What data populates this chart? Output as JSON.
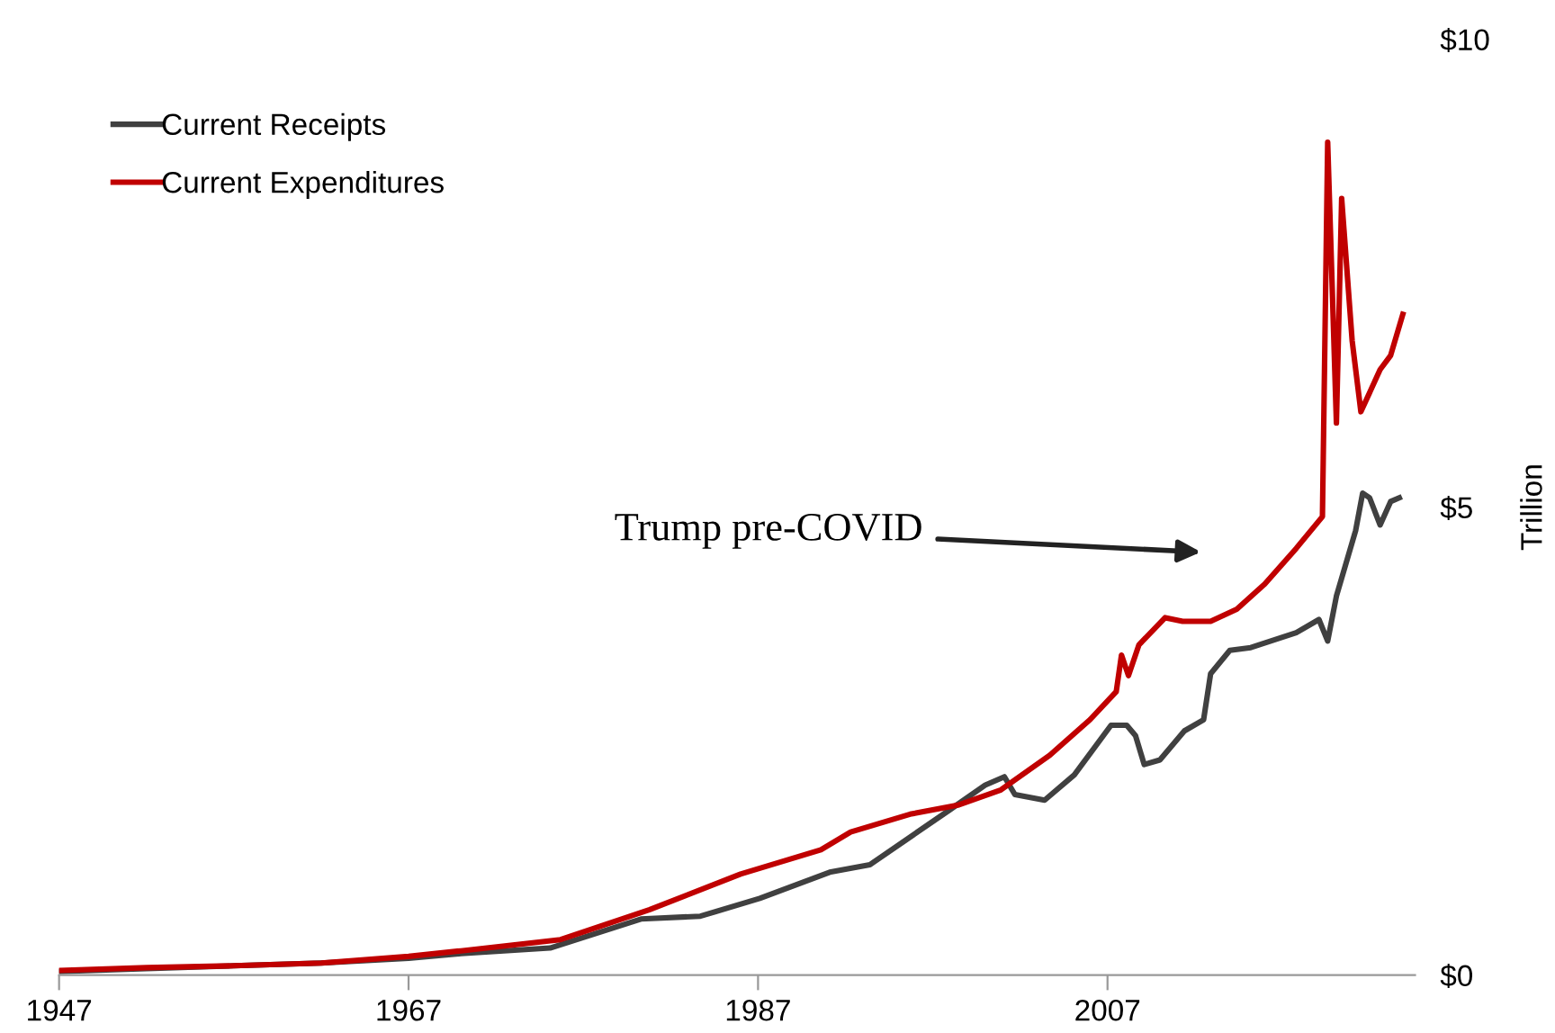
{
  "chart_data": {
    "type": "line",
    "xlim": [
      1947,
      2024.6
    ],
    "xticks": [
      1947,
      1967,
      1987,
      2007
    ],
    "ylim": [
      0,
      10
    ],
    "yticks": [
      {
        "value": 0,
        "label": "$0"
      },
      {
        "value": 5,
        "label": "$5"
      },
      {
        "value": 10,
        "label": "$10"
      }
    ],
    "ylabel": "Trillion",
    "legend": "top left",
    "grid": false,
    "series": [
      {
        "name": "Current Receipts",
        "color": "#404040",
        "x": [
          1947,
          1952,
          1957,
          1962,
          1967,
          1970,
          1975.1,
          1980.3,
          1983.7,
          1987.1,
          1991.1,
          1993.4,
          1998.0,
          2000.0,
          2001.1,
          2001.7,
          2003.4,
          2005.1,
          2007.2,
          2008.1,
          2008.6,
          2009.1,
          2010.0,
          2011.4,
          2012.5,
          2012.9,
          2014.0,
          2015.2,
          2017.8,
          2019.1,
          2019.6,
          2020.1,
          2021.2,
          2021.6,
          2022.0,
          2022.6,
          2023.2,
          2023.7
        ],
        "values": [
          0.04,
          0.07,
          0.1,
          0.13,
          0.18,
          0.23,
          0.29,
          0.6,
          0.63,
          0.82,
          1.1,
          1.18,
          1.77,
          2.03,
          2.12,
          1.93,
          1.87,
          2.14,
          2.67,
          2.67,
          2.56,
          2.25,
          2.3,
          2.61,
          2.73,
          3.22,
          3.47,
          3.5,
          3.66,
          3.8,
          3.57,
          4.05,
          4.75,
          5.15,
          5.1,
          4.81,
          5.06,
          5.1
        ]
      },
      {
        "name": "Current Expenditures",
        "color": "#c00000",
        "x": [
          1947,
          1952,
          1957,
          1962,
          1967,
          1970,
          1975.7,
          1980.8,
          1986.0,
          1990.6,
          1992.3,
          1995.7,
          1998.5,
          2000.9,
          2003.7,
          2006.0,
          2007.5,
          2007.8,
          2008.2,
          2008.8,
          2010.3,
          2011.3,
          2012.9,
          2014.4,
          2016.0,
          2017.8,
          2019.3,
          2019.6,
          2020.1,
          2020.4,
          2021.0,
          2021.5,
          2022.6,
          2023.2,
          2023.9
        ],
        "values": [
          0.05,
          0.08,
          0.1,
          0.13,
          0.2,
          0.26,
          0.38,
          0.7,
          1.08,
          1.34,
          1.53,
          1.72,
          1.82,
          1.98,
          2.35,
          2.73,
          3.03,
          3.42,
          3.2,
          3.53,
          3.82,
          3.78,
          3.78,
          3.91,
          4.18,
          4.56,
          4.9,
          8.9,
          5.9,
          8.3,
          6.78,
          6.02,
          6.47,
          6.62,
          7.06
        ]
      }
    ],
    "annotations": [
      "Trump pre-COVID"
    ]
  }
}
